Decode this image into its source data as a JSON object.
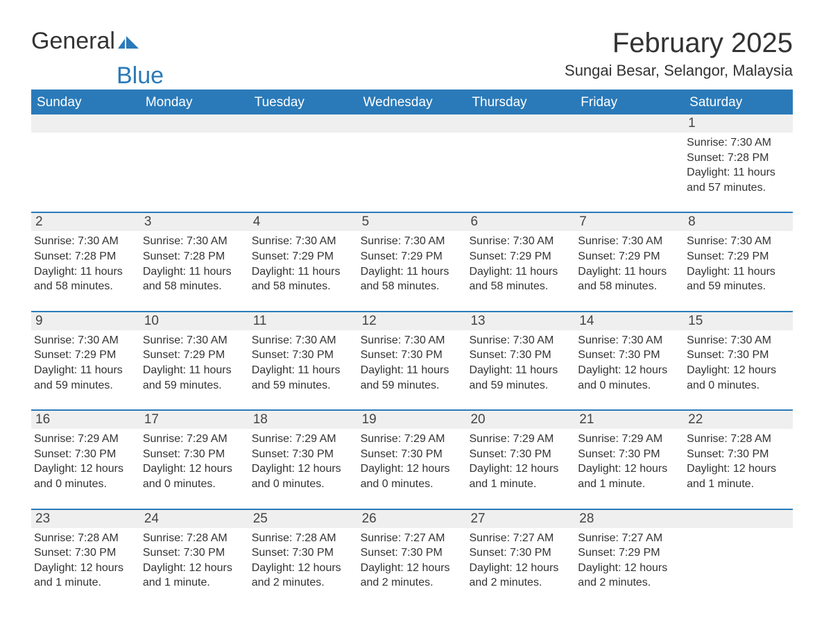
{
  "logo": {
    "text1": "General",
    "text2": "Blue"
  },
  "title": "February 2025",
  "subtitle": "Sungai Besar, Selangor, Malaysia",
  "colors": {
    "accent": "#2a7ab9",
    "header_bg": "#2a7ab9",
    "header_text": "#ffffff",
    "daynum_bg": "#efefef",
    "body_text": "#333333",
    "page_bg": "#ffffff"
  },
  "layout": {
    "columns": 7,
    "rows": 5,
    "title_fontsize": 40,
    "subtitle_fontsize": 22,
    "weekday_fontsize": 19,
    "daynum_fontsize": 19,
    "body_fontsize": 16
  },
  "weekdays": [
    "Sunday",
    "Monday",
    "Tuesday",
    "Wednesday",
    "Thursday",
    "Friday",
    "Saturday"
  ],
  "weeks": [
    [
      null,
      null,
      null,
      null,
      null,
      null,
      {
        "n": "1",
        "sunrise": "Sunrise: 7:30 AM",
        "sunset": "Sunset: 7:28 PM",
        "daylight": "Daylight: 11 hours and 57 minutes."
      }
    ],
    [
      {
        "n": "2",
        "sunrise": "Sunrise: 7:30 AM",
        "sunset": "Sunset: 7:28 PM",
        "daylight": "Daylight: 11 hours and 58 minutes."
      },
      {
        "n": "3",
        "sunrise": "Sunrise: 7:30 AM",
        "sunset": "Sunset: 7:28 PM",
        "daylight": "Daylight: 11 hours and 58 minutes."
      },
      {
        "n": "4",
        "sunrise": "Sunrise: 7:30 AM",
        "sunset": "Sunset: 7:29 PM",
        "daylight": "Daylight: 11 hours and 58 minutes."
      },
      {
        "n": "5",
        "sunrise": "Sunrise: 7:30 AM",
        "sunset": "Sunset: 7:29 PM",
        "daylight": "Daylight: 11 hours and 58 minutes."
      },
      {
        "n": "6",
        "sunrise": "Sunrise: 7:30 AM",
        "sunset": "Sunset: 7:29 PM",
        "daylight": "Daylight: 11 hours and 58 minutes."
      },
      {
        "n": "7",
        "sunrise": "Sunrise: 7:30 AM",
        "sunset": "Sunset: 7:29 PM",
        "daylight": "Daylight: 11 hours and 58 minutes."
      },
      {
        "n": "8",
        "sunrise": "Sunrise: 7:30 AM",
        "sunset": "Sunset: 7:29 PM",
        "daylight": "Daylight: 11 hours and 59 minutes."
      }
    ],
    [
      {
        "n": "9",
        "sunrise": "Sunrise: 7:30 AM",
        "sunset": "Sunset: 7:29 PM",
        "daylight": "Daylight: 11 hours and 59 minutes."
      },
      {
        "n": "10",
        "sunrise": "Sunrise: 7:30 AM",
        "sunset": "Sunset: 7:29 PM",
        "daylight": "Daylight: 11 hours and 59 minutes."
      },
      {
        "n": "11",
        "sunrise": "Sunrise: 7:30 AM",
        "sunset": "Sunset: 7:30 PM",
        "daylight": "Daylight: 11 hours and 59 minutes."
      },
      {
        "n": "12",
        "sunrise": "Sunrise: 7:30 AM",
        "sunset": "Sunset: 7:30 PM",
        "daylight": "Daylight: 11 hours and 59 minutes."
      },
      {
        "n": "13",
        "sunrise": "Sunrise: 7:30 AM",
        "sunset": "Sunset: 7:30 PM",
        "daylight": "Daylight: 11 hours and 59 minutes."
      },
      {
        "n": "14",
        "sunrise": "Sunrise: 7:30 AM",
        "sunset": "Sunset: 7:30 PM",
        "daylight": "Daylight: 12 hours and 0 minutes."
      },
      {
        "n": "15",
        "sunrise": "Sunrise: 7:30 AM",
        "sunset": "Sunset: 7:30 PM",
        "daylight": "Daylight: 12 hours and 0 minutes."
      }
    ],
    [
      {
        "n": "16",
        "sunrise": "Sunrise: 7:29 AM",
        "sunset": "Sunset: 7:30 PM",
        "daylight": "Daylight: 12 hours and 0 minutes."
      },
      {
        "n": "17",
        "sunrise": "Sunrise: 7:29 AM",
        "sunset": "Sunset: 7:30 PM",
        "daylight": "Daylight: 12 hours and 0 minutes."
      },
      {
        "n": "18",
        "sunrise": "Sunrise: 7:29 AM",
        "sunset": "Sunset: 7:30 PM",
        "daylight": "Daylight: 12 hours and 0 minutes."
      },
      {
        "n": "19",
        "sunrise": "Sunrise: 7:29 AM",
        "sunset": "Sunset: 7:30 PM",
        "daylight": "Daylight: 12 hours and 0 minutes."
      },
      {
        "n": "20",
        "sunrise": "Sunrise: 7:29 AM",
        "sunset": "Sunset: 7:30 PM",
        "daylight": "Daylight: 12 hours and 1 minute."
      },
      {
        "n": "21",
        "sunrise": "Sunrise: 7:29 AM",
        "sunset": "Sunset: 7:30 PM",
        "daylight": "Daylight: 12 hours and 1 minute."
      },
      {
        "n": "22",
        "sunrise": "Sunrise: 7:28 AM",
        "sunset": "Sunset: 7:30 PM",
        "daylight": "Daylight: 12 hours and 1 minute."
      }
    ],
    [
      {
        "n": "23",
        "sunrise": "Sunrise: 7:28 AM",
        "sunset": "Sunset: 7:30 PM",
        "daylight": "Daylight: 12 hours and 1 minute."
      },
      {
        "n": "24",
        "sunrise": "Sunrise: 7:28 AM",
        "sunset": "Sunset: 7:30 PM",
        "daylight": "Daylight: 12 hours and 1 minute."
      },
      {
        "n": "25",
        "sunrise": "Sunrise: 7:28 AM",
        "sunset": "Sunset: 7:30 PM",
        "daylight": "Daylight: 12 hours and 2 minutes."
      },
      {
        "n": "26",
        "sunrise": "Sunrise: 7:27 AM",
        "sunset": "Sunset: 7:30 PM",
        "daylight": "Daylight: 12 hours and 2 minutes."
      },
      {
        "n": "27",
        "sunrise": "Sunrise: 7:27 AM",
        "sunset": "Sunset: 7:30 PM",
        "daylight": "Daylight: 12 hours and 2 minutes."
      },
      {
        "n": "28",
        "sunrise": "Sunrise: 7:27 AM",
        "sunset": "Sunset: 7:29 PM",
        "daylight": "Daylight: 12 hours and 2 minutes."
      },
      null
    ]
  ]
}
